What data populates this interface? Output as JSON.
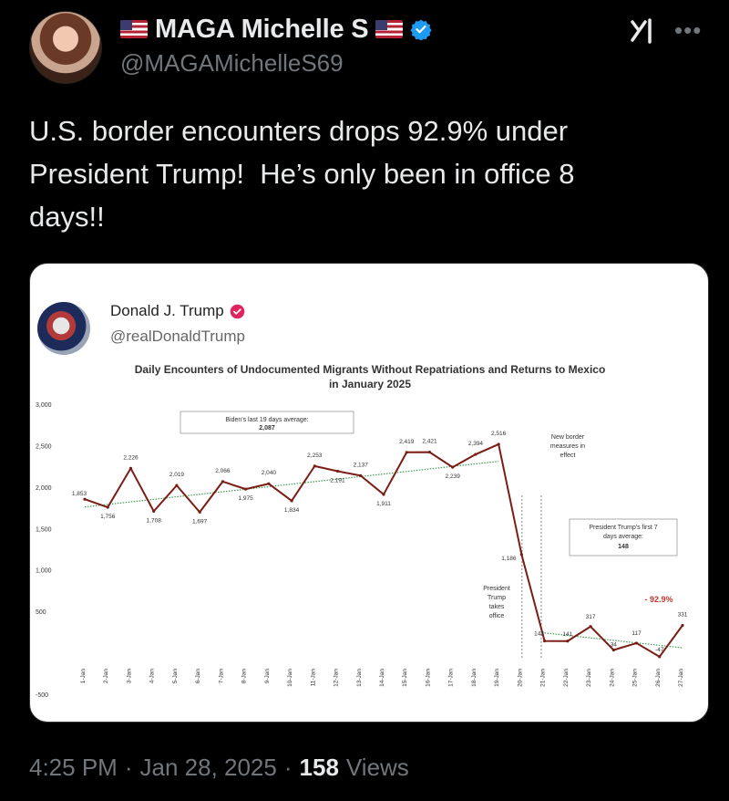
{
  "author": {
    "display_name": "MAGA Michelle S",
    "handle": "@MAGAMichelleS69",
    "flag_icon": "us-flag-icon",
    "verified_color": "#1d9bf0"
  },
  "tweet": {
    "text": "U.S. border encounters drops 92.9% under\nPresident Trump!  He’s only been in office 8\ndays!!"
  },
  "quoted": {
    "display_name": "Donald J. Trump",
    "handle": "@realDonaldTrump",
    "badge_color": "#e0245e"
  },
  "meta": {
    "time": "4:25 PM",
    "sep1": "·",
    "date": "Jan 28, 2025",
    "sep2": "·",
    "views_count": "158",
    "views_label": "Views"
  },
  "chart_data": {
    "type": "line",
    "title": "Daily Encounters of Undocumented Migrants Without Repatriations and Returns to Mexico",
    "subtitle": "in January 2025",
    "x": [
      "1-Jan",
      "2-Jan",
      "3-Jan",
      "4-Jan",
      "5-Jan",
      "6-Jan",
      "7-Jan",
      "8-Jan",
      "9-Jan",
      "10-Jan",
      "11-Jan",
      "12-Jan",
      "13-Jan",
      "14-Jan",
      "15-Jan",
      "16-Jan",
      "17-Jan",
      "18-Jan",
      "19-Jan",
      "20-Jan",
      "21-Jan",
      "22-Jan",
      "23-Jan",
      "24-Jan",
      "25-Jan",
      "26-Jan",
      "27-Jan"
    ],
    "values": [
      1853,
      1756,
      2226,
      1708,
      2019,
      1697,
      2066,
      1975,
      2040,
      1834,
      2253,
      2191,
      2137,
      1911,
      2419,
      2421,
      2239,
      2394,
      2516,
      1186,
      143,
      141,
      317,
      34,
      117,
      -47,
      331
    ],
    "value_labels": [
      "1,853",
      "1,756",
      "2,226",
      "1,708",
      "2,019",
      "1,697",
      "2,066",
      "1,975",
      "2,040",
      "1,834",
      "2,253",
      "2,191",
      "2,137",
      "1,911",
      "2,419",
      "2,421",
      "2,239",
      "2,394",
      "2,516",
      "1,186",
      "143",
      "141",
      "317",
      "34",
      "117",
      "-47",
      "331"
    ],
    "y_ticks": [
      3000,
      2500,
      2000,
      1500,
      1000,
      500,
      0,
      -500
    ],
    "y_tick_labels": [
      "3,000",
      "2,500",
      "2,000",
      "1,500",
      "1,000",
      "500",
      "",
      "-500"
    ],
    "ylim": [
      -500,
      3000
    ],
    "line_color": "#7a1d14",
    "trend_color": "#3f9a52",
    "annotations": {
      "biden_box_line1": "Biden's last 19 days average:",
      "biden_box_line2": "2,087",
      "new_border_1": "New border",
      "new_border_2": "measures in",
      "new_border_3": "effect",
      "trump_box_line1": "President Trump's first 7",
      "trump_box_line2": "days average:",
      "trump_box_line3": "148",
      "takes_office_1": "President",
      "takes_office_2": "Trump",
      "takes_office_3": "takes",
      "takes_office_4": "office",
      "drop_pct": "- 92.9%"
    }
  }
}
